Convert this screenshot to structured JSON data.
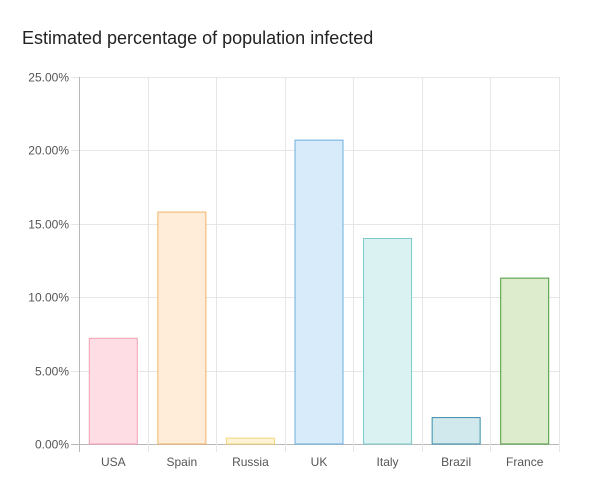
{
  "chart_data": {
    "type": "bar",
    "title": "Estimated percentage of population infected",
    "categories": [
      "USA",
      "Spain",
      "Russia",
      "UK",
      "Italy",
      "Brazil",
      "France"
    ],
    "values": [
      7.2,
      15.8,
      0.4,
      20.7,
      14.0,
      1.8,
      11.3
    ],
    "ylim": [
      0,
      25
    ],
    "yticks": [
      0,
      5,
      10,
      15,
      20,
      25
    ],
    "ytick_labels": [
      "0.00%",
      "5.00%",
      "10.00%",
      "15.00%",
      "20.00%",
      "25.00%"
    ],
    "xlabel": "",
    "ylabel": "",
    "grid": true,
    "bar_fill_colors": [
      "#ffdde5",
      "#ffecd9",
      "#fff4d6",
      "#d7ebfa",
      "#daf2f2",
      "#d1e8ed",
      "#dceccc"
    ],
    "bar_border_colors": [
      "#f2a0b5",
      "#f0b469",
      "#f5d57a",
      "#6cb0de",
      "#7cc9c9",
      "#3a8ea8",
      "#4a9a3c"
    ]
  }
}
